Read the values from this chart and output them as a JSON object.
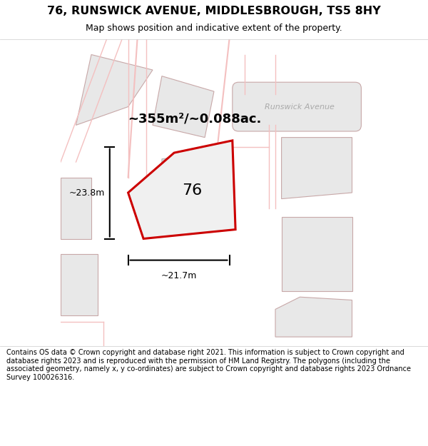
{
  "title": "76, RUNSWICK AVENUE, MIDDLESBROUGH, TS5 8HY",
  "subtitle": "Map shows position and indicative extent of the property.",
  "footer": "Contains OS data © Crown copyright and database right 2021. This information is subject to Crown copyright and database rights 2023 and is reproduced with the permission of HM Land Registry. The polygons (including the associated geometry, namely x, y co-ordinates) are subject to Crown copyright and database rights 2023 Ordnance Survey 100026316.",
  "area_label": "~355m²/~0.088ac.",
  "street_label": "Runswick Avenue",
  "plot_label": "76",
  "dim_h": "~23.8m",
  "dim_w": "~21.7m",
  "bg_color": "#f8f8f8",
  "map_bg": "#ffffff",
  "title_color": "#000000",
  "footer_color": "#000000",
  "plot_outline_color": "#cc0000",
  "building_fill": "#d8d8d8",
  "road_fill": "#e8e8e8",
  "dim_color": "#000000",
  "street_label_color": "#aaaaaa",
  "plot_label_color": "#000000"
}
